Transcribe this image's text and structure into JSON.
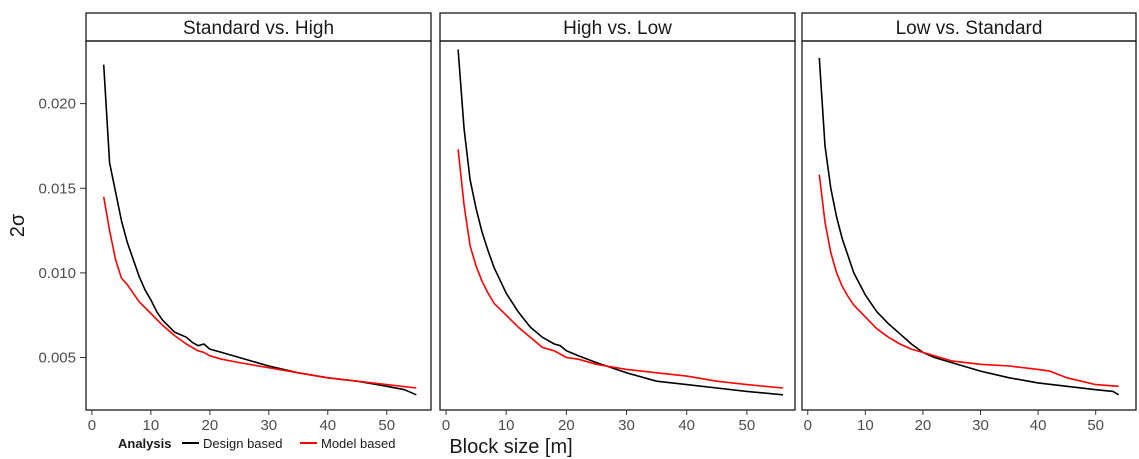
{
  "chart_data": {
    "type": "line",
    "ylabel": "2σ",
    "xlabel": "Block size [m]",
    "ylim": [
      0.0019,
      0.0237
    ],
    "yticks": [
      0.005,
      0.01,
      0.015,
      0.02
    ],
    "yticklabels": [
      "0.005",
      "0.010",
      "0.015",
      "0.020"
    ],
    "grid": false,
    "legend_position": "bottom-left",
    "legend": {
      "title": "Analysis",
      "entries": [
        {
          "label": "Design based",
          "color": "#000000"
        },
        {
          "label": "Model based",
          "color": "#ff0000"
        }
      ]
    },
    "panels": [
      {
        "title": "Standard vs. High",
        "xlim": [
          -1.0,
          57.5
        ],
        "xticks": [
          0,
          10,
          20,
          30,
          40,
          50
        ],
        "xticklabels": [
          "0",
          "10",
          "20",
          "30",
          "40",
          "50"
        ],
        "series": [
          {
            "name": "Design based",
            "color": "#000000",
            "points": [
              [
                2,
                0.0223
              ],
              [
                3,
                0.0165
              ],
              [
                4,
                0.0148
              ],
              [
                5,
                0.0131
              ],
              [
                6,
                0.0118
              ],
              [
                7,
                0.0108
              ],
              [
                8,
                0.0098
              ],
              [
                9,
                0.009
              ],
              [
                10,
                0.0084
              ],
              [
                11,
                0.0077
              ],
              [
                12,
                0.0072
              ],
              [
                14,
                0.0065
              ],
              [
                16,
                0.0062
              ],
              [
                17,
                0.0059
              ],
              [
                18,
                0.0057
              ],
              [
                19,
                0.0058
              ],
              [
                20,
                0.0055
              ],
              [
                22,
                0.0053
              ],
              [
                25,
                0.005
              ],
              [
                30,
                0.0045
              ],
              [
                35,
                0.0041
              ],
              [
                40,
                0.0038
              ],
              [
                45,
                0.0036
              ],
              [
                50,
                0.0033
              ],
              [
                53,
                0.0031
              ],
              [
                55,
                0.0028
              ]
            ]
          },
          {
            "name": "Model based",
            "color": "#ff0000",
            "points": [
              [
                2,
                0.0145
              ],
              [
                3,
                0.0125
              ],
              [
                4,
                0.0108
              ],
              [
                5,
                0.0097
              ],
              [
                6,
                0.0093
              ],
              [
                7,
                0.0088
              ],
              [
                8,
                0.0083
              ],
              [
                10,
                0.0076
              ],
              [
                12,
                0.0069
              ],
              [
                14,
                0.0063
              ],
              [
                16,
                0.0058
              ],
              [
                18,
                0.0054
              ],
              [
                19,
                0.0053
              ],
              [
                20,
                0.0051
              ],
              [
                22,
                0.0049
              ],
              [
                25,
                0.0047
              ],
              [
                30,
                0.0044
              ],
              [
                35,
                0.0041
              ],
              [
                40,
                0.0038
              ],
              [
                45,
                0.0036
              ],
              [
                50,
                0.0034
              ],
              [
                55,
                0.0032
              ]
            ]
          }
        ]
      },
      {
        "title": "High vs. Low",
        "xlim": [
          -1.0,
          58.0
        ],
        "xticks": [
          0,
          10,
          20,
          30,
          40,
          50
        ],
        "xticklabels": [
          "0",
          "10",
          "20",
          "30",
          "40",
          "50"
        ],
        "series": [
          {
            "name": "Design based",
            "color": "#000000",
            "points": [
              [
                2,
                0.0232
              ],
              [
                3,
                0.0185
              ],
              [
                4,
                0.0155
              ],
              [
                5,
                0.0138
              ],
              [
                6,
                0.0124
              ],
              [
                7,
                0.0113
              ],
              [
                8,
                0.0103
              ],
              [
                10,
                0.0088
              ],
              [
                12,
                0.0077
              ],
              [
                14,
                0.0068
              ],
              [
                16,
                0.0062
              ],
              [
                18,
                0.0058
              ],
              [
                19,
                0.0057
              ],
              [
                20,
                0.0054
              ],
              [
                22,
                0.0051
              ],
              [
                25,
                0.0047
              ],
              [
                30,
                0.0041
              ],
              [
                35,
                0.0036
              ],
              [
                40,
                0.0034
              ],
              [
                45,
                0.0032
              ],
              [
                50,
                0.003
              ],
              [
                56,
                0.0028
              ]
            ]
          },
          {
            "name": "Model based",
            "color": "#ff0000",
            "points": [
              [
                2,
                0.0173
              ],
              [
                3,
                0.014
              ],
              [
                4,
                0.0116
              ],
              [
                5,
                0.0104
              ],
              [
                6,
                0.0095
              ],
              [
                7,
                0.0088
              ],
              [
                8,
                0.0082
              ],
              [
                10,
                0.0075
              ],
              [
                12,
                0.0068
              ],
              [
                14,
                0.0062
              ],
              [
                16,
                0.0056
              ],
              [
                18,
                0.0054
              ],
              [
                20,
                0.005
              ],
              [
                22,
                0.0049
              ],
              [
                25,
                0.0046
              ],
              [
                30,
                0.0043
              ],
              [
                35,
                0.0041
              ],
              [
                40,
                0.0039
              ],
              [
                45,
                0.0036
              ],
              [
                50,
                0.0034
              ],
              [
                56,
                0.0032
              ]
            ]
          }
        ]
      },
      {
        "title": "Low vs. Standard",
        "xlim": [
          -1.0,
          57.0
        ],
        "xticks": [
          0,
          10,
          20,
          30,
          40,
          50
        ],
        "xticklabels": [
          "0",
          "10",
          "20",
          "30",
          "40",
          "50"
        ],
        "series": [
          {
            "name": "Design based",
            "color": "#000000",
            "points": [
              [
                2,
                0.0227
              ],
              [
                3,
                0.0175
              ],
              [
                4,
                0.015
              ],
              [
                5,
                0.0133
              ],
              [
                6,
                0.012
              ],
              [
                7,
                0.011
              ],
              [
                8,
                0.01
              ],
              [
                10,
                0.0087
              ],
              [
                12,
                0.0077
              ],
              [
                14,
                0.007
              ],
              [
                16,
                0.0064
              ],
              [
                18,
                0.0058
              ],
              [
                20,
                0.0053
              ],
              [
                22,
                0.005
              ],
              [
                25,
                0.0047
              ],
              [
                30,
                0.0042
              ],
              [
                35,
                0.0038
              ],
              [
                40,
                0.0035
              ],
              [
                45,
                0.0033
              ],
              [
                50,
                0.0031
              ],
              [
                53,
                0.003
              ],
              [
                54,
                0.0028
              ]
            ]
          },
          {
            "name": "Model based",
            "color": "#ff0000",
            "points": [
              [
                2,
                0.0158
              ],
              [
                3,
                0.013
              ],
              [
                4,
                0.0112
              ],
              [
                5,
                0.01
              ],
              [
                6,
                0.0092
              ],
              [
                7,
                0.0086
              ],
              [
                8,
                0.0081
              ],
              [
                10,
                0.0074
              ],
              [
                12,
                0.0067
              ],
              [
                14,
                0.0062
              ],
              [
                16,
                0.0058
              ],
              [
                18,
                0.0055
              ],
              [
                20,
                0.0053
              ],
              [
                22,
                0.0051
              ],
              [
                25,
                0.0048
              ],
              [
                30,
                0.0046
              ],
              [
                35,
                0.0045
              ],
              [
                40,
                0.0043
              ],
              [
                42,
                0.0042
              ],
              [
                45,
                0.0038
              ],
              [
                50,
                0.0034
              ],
              [
                54,
                0.0033
              ]
            ]
          }
        ]
      }
    ]
  }
}
